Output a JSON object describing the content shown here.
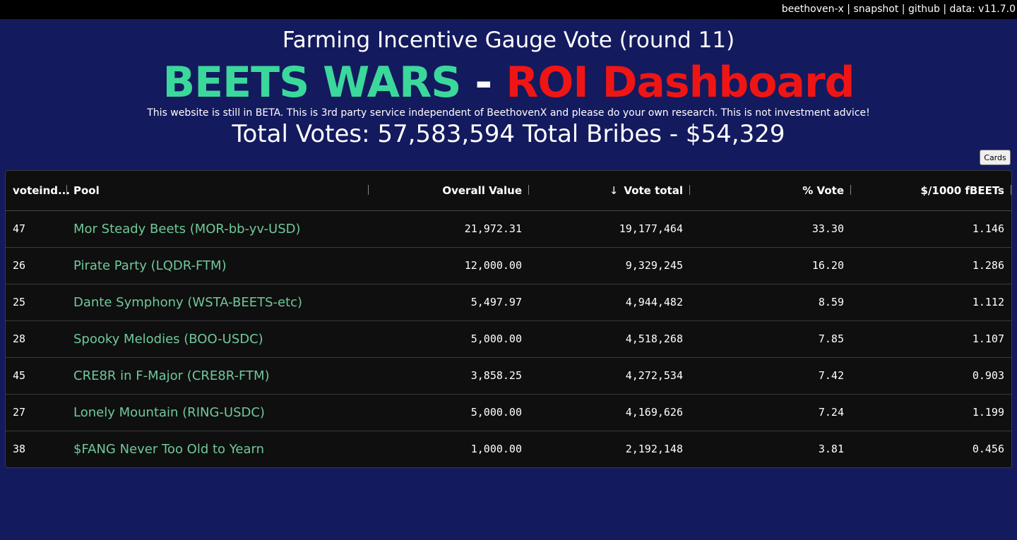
{
  "topbar": {
    "links": [
      "beethoven-x",
      "snapshot",
      "github",
      "data: v11.7.0"
    ]
  },
  "header": {
    "subtitle": "Farming Incentive Gauge Vote (round 11)",
    "title_part1": "BEETS WARS",
    "title_dash": "-",
    "title_part2": "ROI Dashboard",
    "disclaimer": "This website is still in BETA. This is 3rd party service independent of BeethovenX and please do your own research. This is not investment advice!",
    "totals": "Total Votes: 57,583,594 Total Bribes - $54,329"
  },
  "view_toggle": {
    "label": "Cards"
  },
  "colors": {
    "background": "#141a5e",
    "title_green": "#3bd89b",
    "title_red": "#f01515",
    "pool_link": "#6fc99a",
    "grid_bg": "#0f0f0f"
  },
  "table": {
    "columns": [
      "voteind...",
      "Pool",
      "Overall Value",
      "Vote total",
      "% Vote",
      "$/1000 fBEETs"
    ],
    "sort_icon": "arrow-down-icon",
    "rows": [
      {
        "voteindex": "47",
        "pool": "Mor Steady Beets (MOR-bb-yv-USD)",
        "overall_value": "21,972.31",
        "vote_total": "19,177,464",
        "pct_vote": "33.30",
        "per_1000": "1.146"
      },
      {
        "voteindex": "26",
        "pool": "Pirate Party (LQDR-FTM)",
        "overall_value": "12,000.00",
        "vote_total": "9,329,245",
        "pct_vote": "16.20",
        "per_1000": "1.286"
      },
      {
        "voteindex": "25",
        "pool": "Dante Symphony (WSTA-BEETS-etc)",
        "overall_value": "5,497.97",
        "vote_total": "4,944,482",
        "pct_vote": "8.59",
        "per_1000": "1.112"
      },
      {
        "voteindex": "28",
        "pool": "Spooky Melodies (BOO-USDC)",
        "overall_value": "5,000.00",
        "vote_total": "4,518,268",
        "pct_vote": "7.85",
        "per_1000": "1.107"
      },
      {
        "voteindex": "45",
        "pool": "CRE8R in F-Major (CRE8R-FTM)",
        "overall_value": "3,858.25",
        "vote_total": "4,272,534",
        "pct_vote": "7.42",
        "per_1000": "0.903"
      },
      {
        "voteindex": "27",
        "pool": "Lonely Mountain (RING-USDC)",
        "overall_value": "5,000.00",
        "vote_total": "4,169,626",
        "pct_vote": "7.24",
        "per_1000": "1.199"
      },
      {
        "voteindex": "38",
        "pool": "$FANG Never Too Old to Yearn",
        "overall_value": "1,000.00",
        "vote_total": "2,192,148",
        "pct_vote": "3.81",
        "per_1000": "0.456"
      }
    ]
  }
}
